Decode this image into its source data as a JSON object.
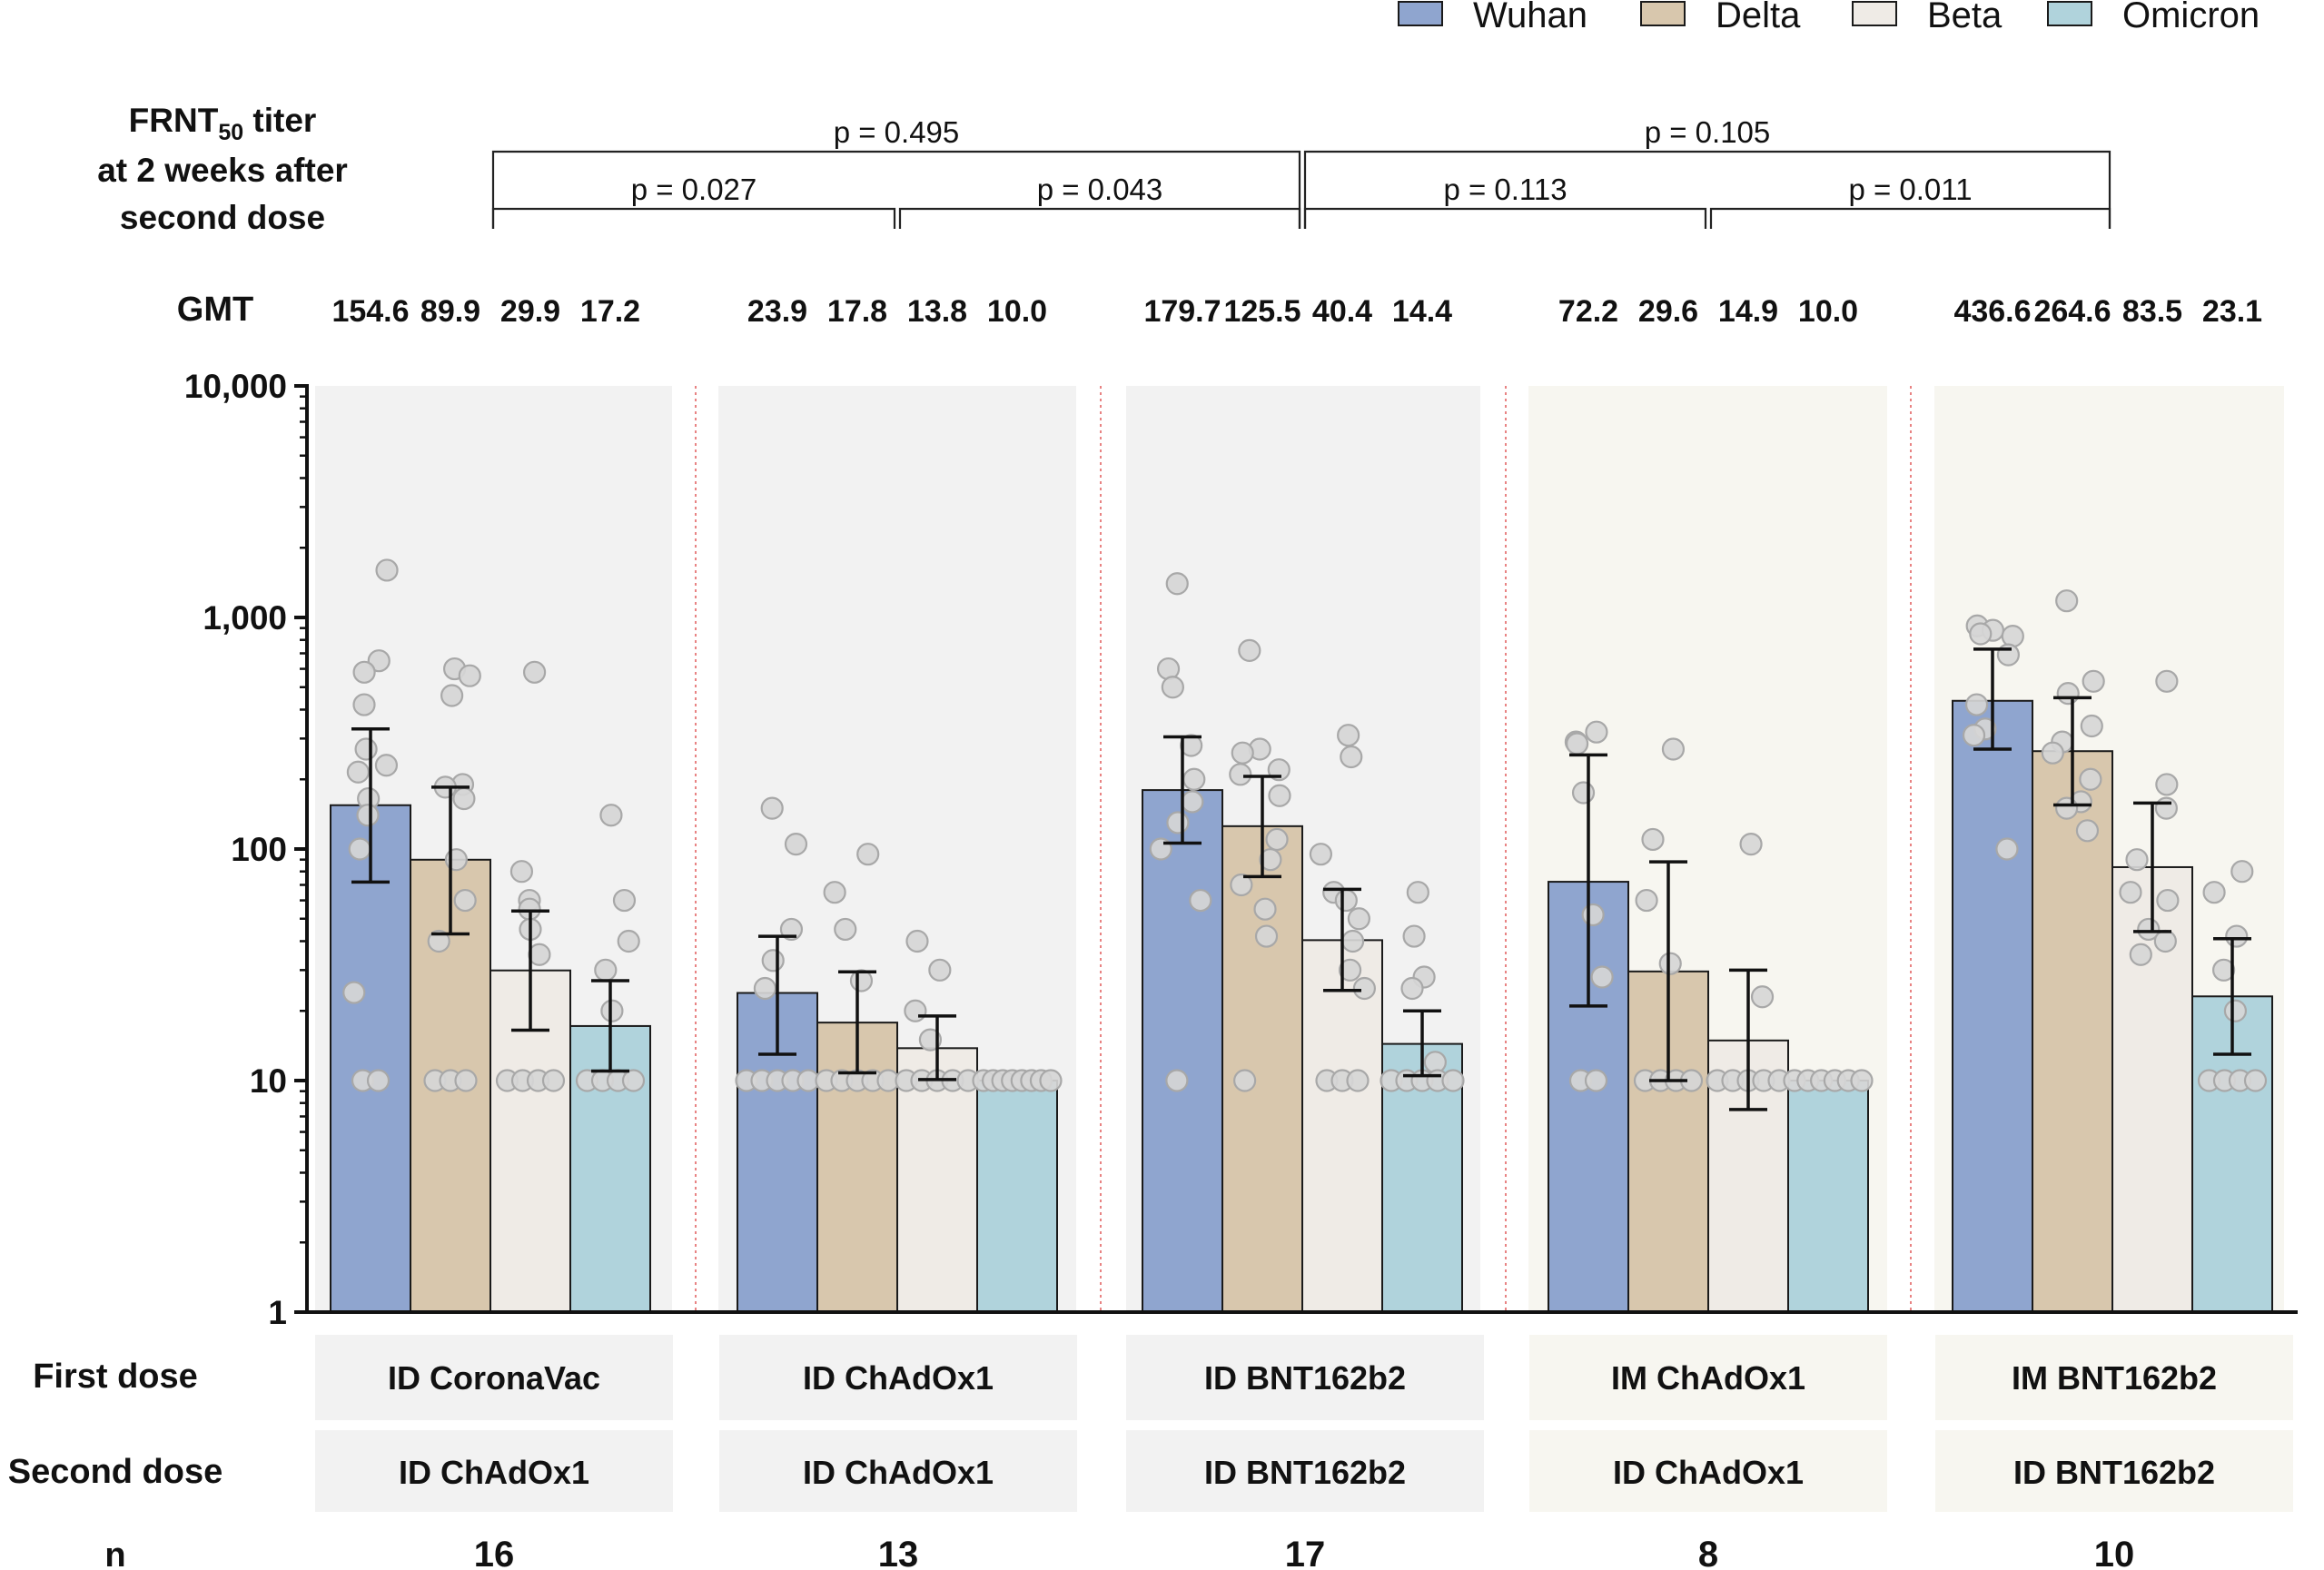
{
  "chart_data": {
    "type": "bar",
    "title_lines": [
      "FRNT",
      "50",
      " titer",
      "at 2 weeks after",
      "second dose"
    ],
    "y_scale": "log",
    "ylim": [
      1,
      10000
    ],
    "y_ticks": [
      {
        "value": 1,
        "label": "1"
      },
      {
        "value": 10,
        "label": "10"
      },
      {
        "value": 100,
        "label": "100"
      },
      {
        "value": 1000,
        "label": "1,000"
      },
      {
        "value": 10000,
        "label": "10,000"
      }
    ],
    "series_names": [
      "Wuhan",
      "Delta",
      "Beta",
      "Omicron"
    ],
    "series_colors": [
      "#8fa5cf",
      "#d8c7ad",
      "#efebe6",
      "#b0d3dc"
    ],
    "gmt_label": "GMT",
    "row_labels": {
      "first": "First dose",
      "second": "Second dose",
      "n": "n"
    },
    "groups": [
      {
        "first_dose": "ID CoronaVac",
        "second_dose": "ID ChAdOx1",
        "n": "16",
        "panel_color": "#f2f2f2",
        "label_bg": "#f2f2f2",
        "gmt": [
          "154.6",
          "89.9",
          "29.9",
          "17.2"
        ],
        "values": [
          154.6,
          89.9,
          29.9,
          17.2
        ],
        "err_low": [
          72,
          43,
          16.5,
          11
        ],
        "err_high": [
          330,
          185,
          54,
          27
        ],
        "points": [
          [
            1600,
            650,
            580,
            420,
            270,
            230,
            215,
            165,
            140,
            100,
            24,
            10,
            10
          ],
          [
            600,
            560,
            460,
            190,
            185,
            165,
            90,
            60,
            40,
            10,
            10,
            10
          ],
          [
            580,
            80,
            60,
            55,
            45,
            35,
            10,
            10,
            10,
            10
          ],
          [
            140,
            60,
            40,
            30,
            20,
            10,
            10,
            10,
            10
          ]
        ]
      },
      {
        "first_dose": "ID ChAdOx1",
        "second_dose": "ID ChAdOx1",
        "n": "13",
        "panel_color": "#f2f2f2",
        "label_bg": "#f2f2f2",
        "gmt": [
          "23.9",
          "17.8",
          "13.8",
          "10.0"
        ],
        "values": [
          23.9,
          17.8,
          13.8,
          10.0
        ],
        "err_low": [
          13,
          10.8,
          10.1,
          10
        ],
        "err_high": [
          42,
          29.5,
          19,
          10
        ],
        "points": [
          [
            150,
            105,
            45,
            33,
            25,
            10,
            10,
            10,
            10,
            10
          ],
          [
            95,
            65,
            45,
            27,
            10,
            10,
            10,
            10,
            10
          ],
          [
            40,
            30,
            20,
            15,
            10,
            10,
            10,
            10,
            10
          ],
          [
            10,
            10,
            10,
            10,
            10,
            10,
            10,
            10
          ]
        ]
      },
      {
        "first_dose": "ID BNT162b2",
        "second_dose": "ID BNT162b2",
        "n": "17",
        "panel_color": "#f2f2f2",
        "label_bg": "#f2f2f2",
        "gmt": [
          "179.7",
          "125.5",
          "40.4",
          "14.4"
        ],
        "values": [
          179.7,
          125.5,
          40.4,
          14.4
        ],
        "err_low": [
          106,
          76,
          24.5,
          10.5
        ],
        "err_high": [
          305,
          206,
          67,
          20
        ],
        "points": [
          [
            1400,
            600,
            500,
            280,
            200,
            160,
            130,
            100,
            60,
            10
          ],
          [
            720,
            270,
            260,
            220,
            210,
            170,
            110,
            90,
            70,
            55,
            42,
            10
          ],
          [
            310,
            250,
            95,
            65,
            60,
            50,
            40,
            30,
            25,
            10,
            10,
            10
          ],
          [
            65,
            42,
            28,
            25,
            12,
            10,
            10,
            10,
            10,
            10
          ]
        ]
      },
      {
        "first_dose": "IM ChAdOx1",
        "second_dose": "ID ChAdOx1",
        "n": "8",
        "panel_color": "#f7f6f0",
        "label_bg": "#f7f6f0",
        "gmt": [
          "72.2",
          "29.6",
          "14.9",
          "10.0"
        ],
        "values": [
          72.2,
          29.6,
          14.9,
          10.0
        ],
        "err_low": [
          21,
          10,
          7.5,
          10
        ],
        "err_high": [
          255,
          88,
          30,
          10
        ],
        "points": [
          [
            320,
            290,
            285,
            175,
            52,
            28,
            10,
            10
          ],
          [
            270,
            110,
            60,
            32,
            10,
            10,
            10,
            10
          ],
          [
            105,
            23,
            10,
            10,
            10,
            10,
            10
          ],
          [
            10,
            10,
            10,
            10,
            10,
            10
          ]
        ]
      },
      {
        "first_dose": "IM BNT162b2",
        "second_dose": "ID BNT162b2",
        "n": "10",
        "panel_color": "#f7f6f0",
        "label_bg": "#f7f6f0",
        "gmt": [
          "436.6",
          "264.6",
          "83.5",
          "23.1"
        ],
        "values": [
          436.6,
          264.6,
          83.5,
          23.1
        ],
        "err_low": [
          270,
          155,
          44,
          13
        ],
        "err_high": [
          730,
          450,
          158,
          41
        ],
        "points": [
          [
            920,
            880,
            850,
            830,
            690,
            420,
            330,
            310,
            100
          ],
          [
            1180,
            530,
            470,
            340,
            290,
            260,
            200,
            160,
            150,
            120
          ],
          [
            530,
            190,
            150,
            90,
            65,
            60,
            45,
            40,
            35
          ],
          [
            80,
            65,
            42,
            30,
            20,
            10,
            10,
            10,
            10
          ]
        ]
      }
    ],
    "comparisons": [
      {
        "label": "p = 0.027",
        "from_group": 0,
        "to_group": 1,
        "level": 0
      },
      {
        "label": "p = 0.043",
        "from_group": 1,
        "to_group": 2,
        "level": 0
      },
      {
        "label": "p = 0.113",
        "from_group": 2,
        "to_group": 3,
        "level": 0
      },
      {
        "label": "p = 0.011",
        "from_group": 3,
        "to_group": 4,
        "level": 0
      },
      {
        "label": "p = 0.495",
        "from_group": 0,
        "to_group": 2,
        "level": 1
      },
      {
        "label": "p = 0.105",
        "from_group": 2,
        "to_group": 4,
        "level": 1
      }
    ],
    "legend_position": "top-right"
  }
}
